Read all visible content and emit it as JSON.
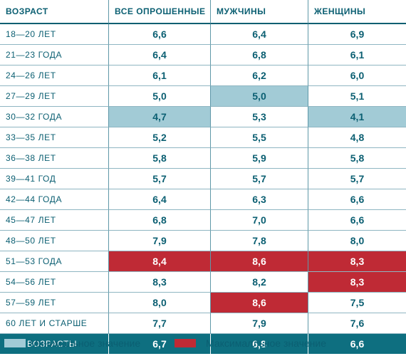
{
  "headers": [
    "Возраст",
    "Все опрошенные",
    "Мужчины",
    "Женщины"
  ],
  "rows": [
    {
      "age": "18—20 лет",
      "all": "6,6",
      "men": "6,4",
      "women": "6,9",
      "hl": [
        "",
        "",
        ""
      ]
    },
    {
      "age": "21—23 года",
      "all": "6,4",
      "men": "6,8",
      "women": "6,1",
      "hl": [
        "",
        "",
        ""
      ]
    },
    {
      "age": "24—26 лет",
      "all": "6,1",
      "men": "6,2",
      "women": "6,0",
      "hl": [
        "",
        "",
        ""
      ]
    },
    {
      "age": "27—29 лет",
      "all": "5,0",
      "men": "5,0",
      "women": "5,1",
      "hl": [
        "",
        "min",
        ""
      ]
    },
    {
      "age": "30—32 года",
      "all": "4,7",
      "men": "5,3",
      "women": "4,1",
      "hl": [
        "min",
        "",
        "min"
      ]
    },
    {
      "age": "33—35 лет",
      "all": "5,2",
      "men": "5,5",
      "women": "4,8",
      "hl": [
        "",
        "",
        ""
      ]
    },
    {
      "age": "36—38 лет",
      "all": "5,8",
      "men": "5,9",
      "women": "5,8",
      "hl": [
        "",
        "",
        ""
      ]
    },
    {
      "age": "39—41 год",
      "all": "5,7",
      "men": "5,7",
      "women": "5,7",
      "hl": [
        "",
        "",
        ""
      ]
    },
    {
      "age": "42—44 года",
      "all": "6,4",
      "men": "6,3",
      "women": "6,6",
      "hl": [
        "",
        "",
        ""
      ]
    },
    {
      "age": "45—47 лет",
      "all": "6,8",
      "men": "7,0",
      "women": "6,6",
      "hl": [
        "",
        "",
        ""
      ]
    },
    {
      "age": "48—50 лет",
      "all": "7,9",
      "men": "7,8",
      "women": "8,0",
      "hl": [
        "",
        "",
        ""
      ]
    },
    {
      "age": "51—53 года",
      "all": "8,4",
      "men": "8,6",
      "women": "8,3",
      "hl": [
        "max",
        "max",
        "max"
      ]
    },
    {
      "age": "54—56 лет",
      "all": "8,3",
      "men": "8,2",
      "women": "8,3",
      "hl": [
        "",
        "",
        "max"
      ]
    },
    {
      "age": "57—59 лет",
      "all": "8,0",
      "men": "8,6",
      "women": "7,5",
      "hl": [
        "",
        "max",
        ""
      ]
    },
    {
      "age": "60 лет и старше",
      "all": "7,7",
      "men": "7,9",
      "women": "7,6",
      "hl": [
        "",
        "",
        ""
      ]
    }
  ],
  "total": {
    "age": "Все возрасты",
    "all": "6,7",
    "men": "6,8",
    "women": "6,6"
  },
  "legend": {
    "min_label": "Минимальное значение",
    "max_label": "Максималльное значение",
    "min_color": "#a2cbd6",
    "max_color": "#bf2a35"
  }
}
